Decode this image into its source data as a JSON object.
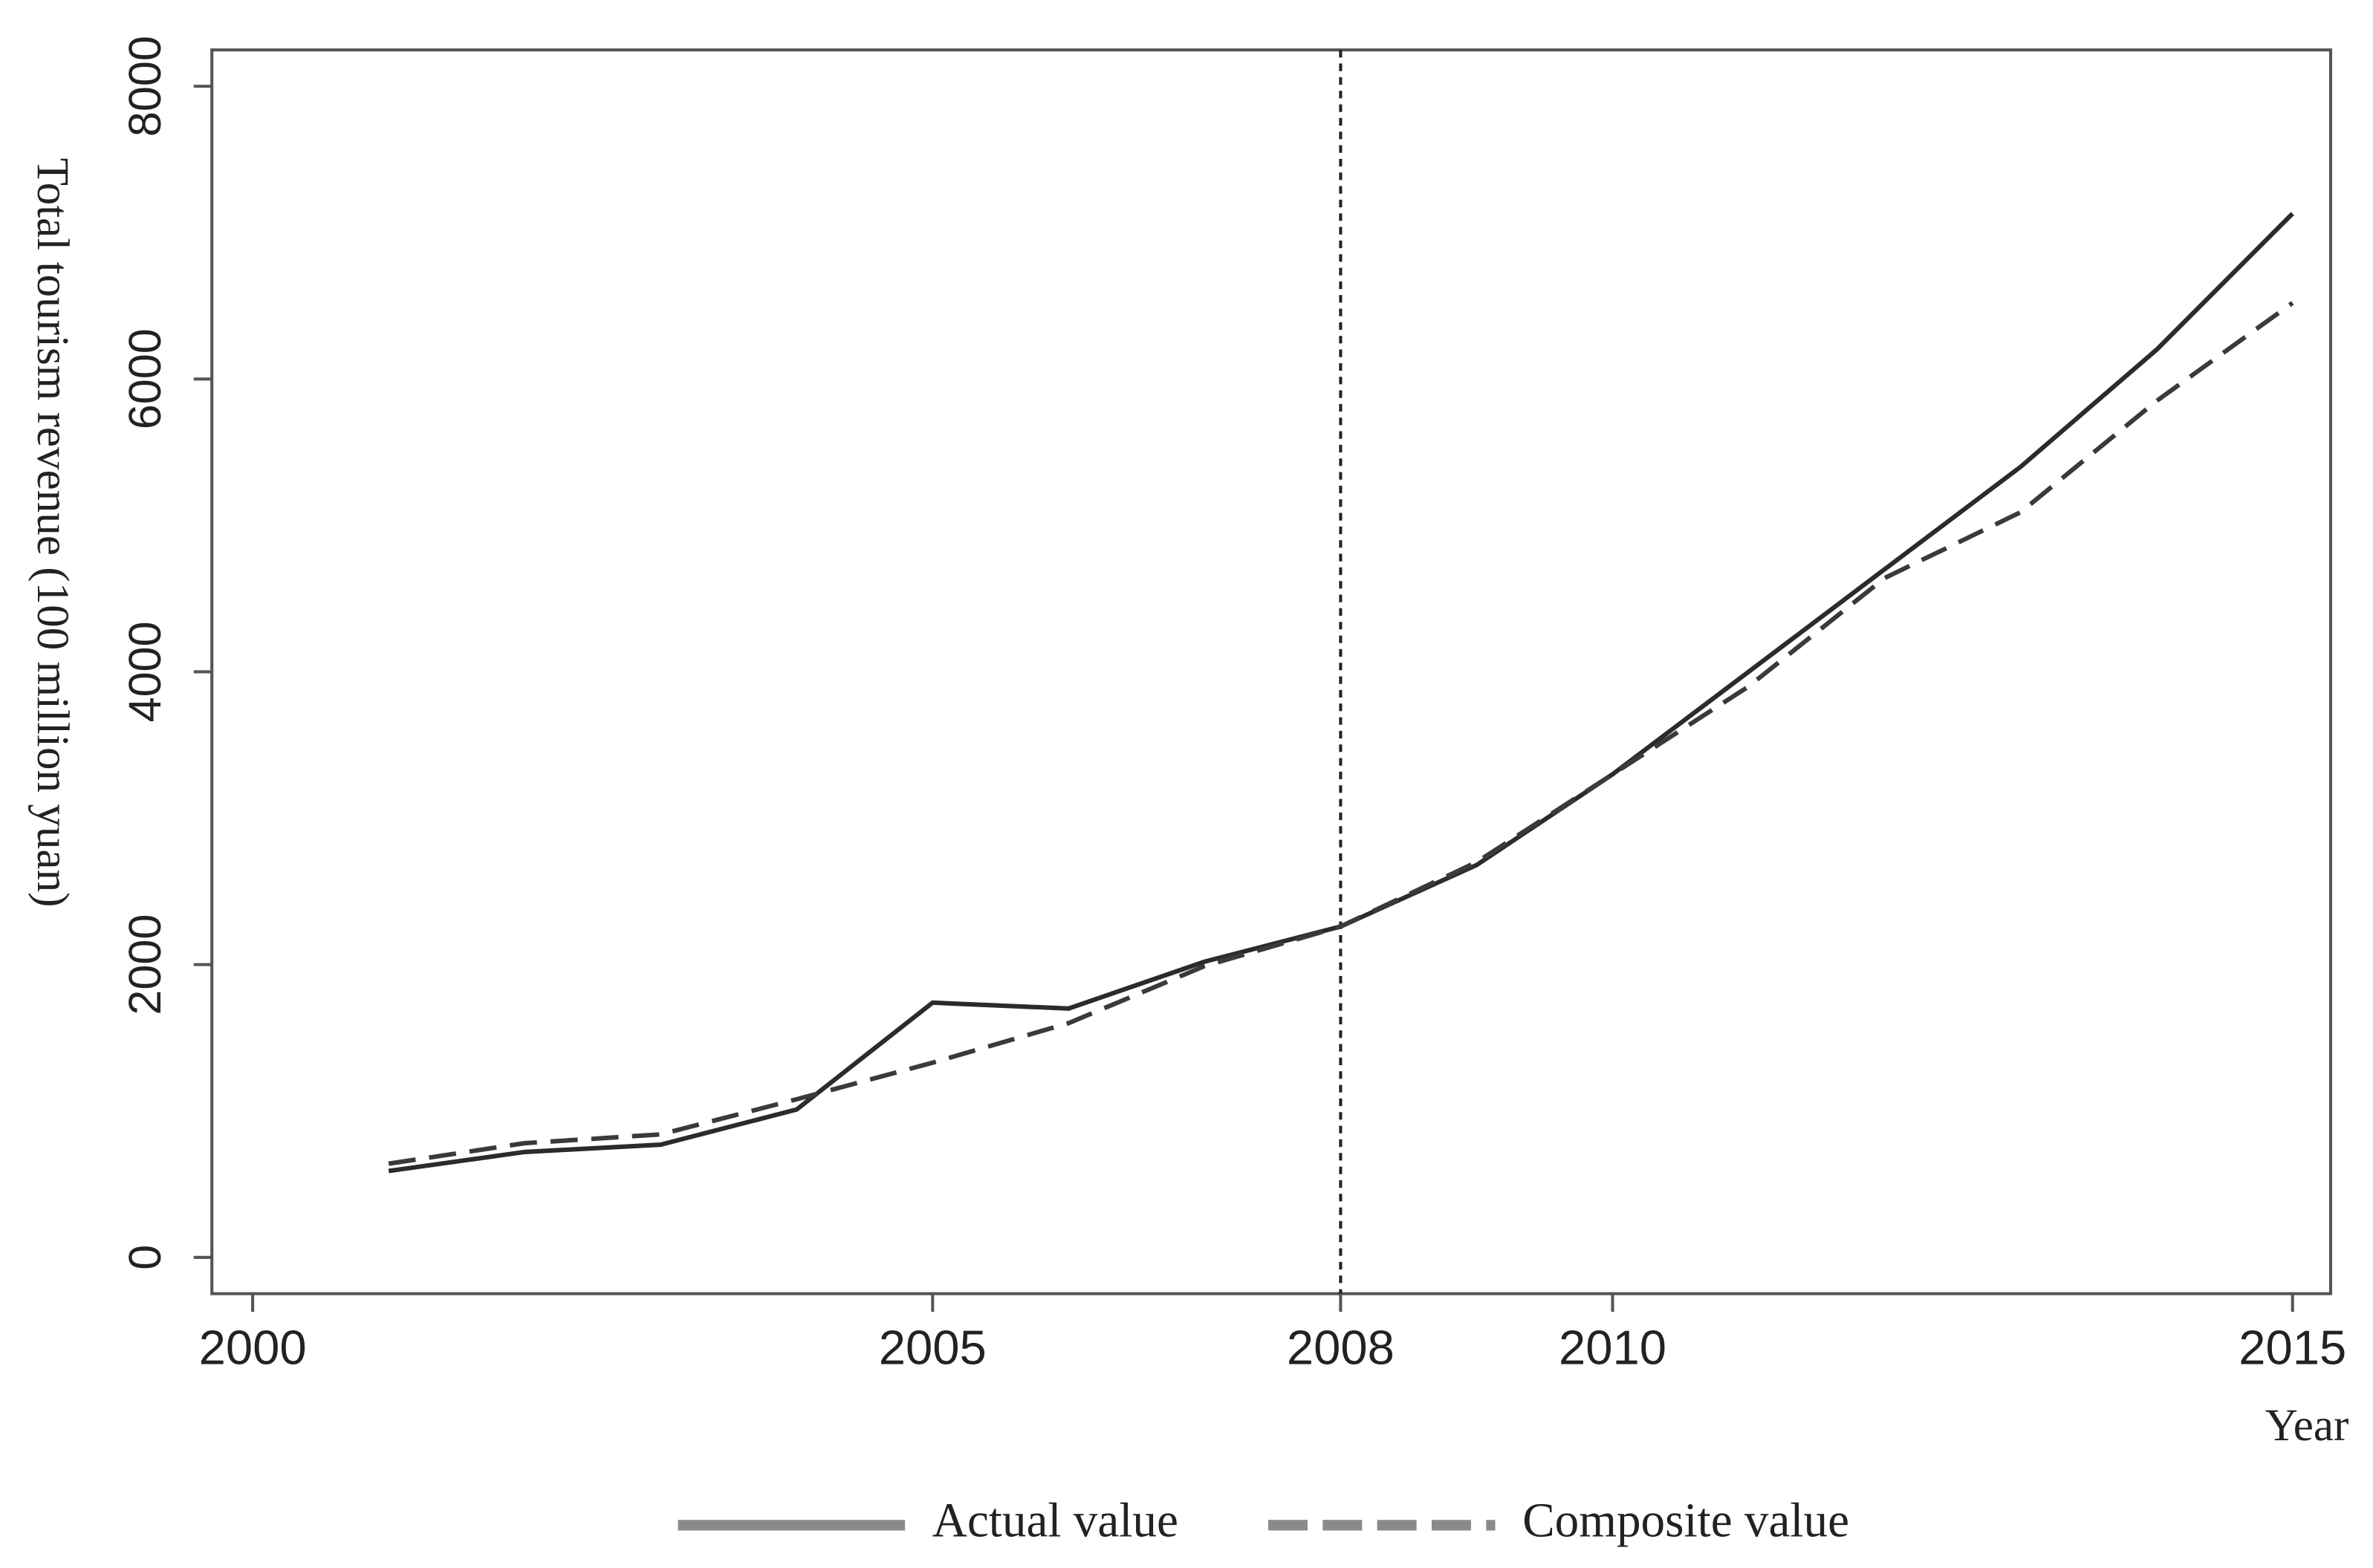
{
  "chart_data": {
    "type": "line",
    "y_label": "Total tourism revenue (100 million yuan)",
    "x_label": "Year",
    "x": [
      2001,
      2002,
      2003,
      2004,
      2005,
      2006,
      2007,
      2008,
      2009,
      2010,
      2011,
      2012,
      2013,
      2014,
      2015
    ],
    "series": [
      {
        "name": "Actual value",
        "color": "#2b2b2b",
        "style": "solid",
        "values": [
          590,
          720,
          770,
          1010,
          1740,
          1700,
          2020,
          2260,
          2680,
          3300,
          4000,
          4700,
          5400,
          6200,
          7130
        ]
      },
      {
        "name": "Composite value",
        "color": "#3a3a3a",
        "style": "dashed",
        "values": [
          640,
          780,
          840,
          1080,
          1330,
          1600,
          1990,
          2260,
          2700,
          3300,
          3900,
          4640,
          5090,
          5850,
          6520
        ]
      }
    ],
    "vline": 2008,
    "xlim": [
      1999.7,
      2015.28
    ],
    "xticks": [
      2000,
      2005,
      2008,
      2010,
      2015
    ],
    "ylim": [
      -248,
      8248
    ],
    "yticks": [
      0,
      2000,
      4000,
      6000,
      8000
    ],
    "legend": "bottom",
    "legend_color": "#8a8a8a"
  }
}
